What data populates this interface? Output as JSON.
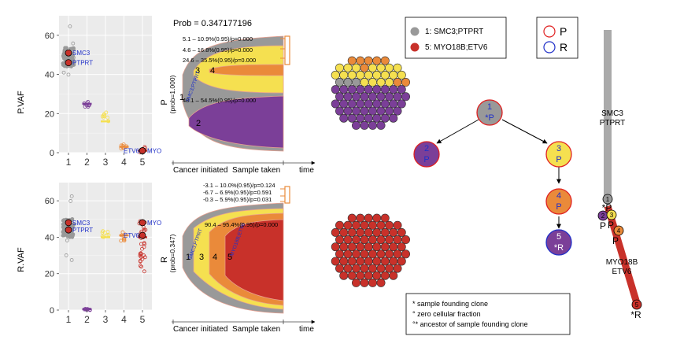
{
  "chart_data": [
    {
      "type": "scatter",
      "panel": "P",
      "ylabel": "P.VAF",
      "xlabel": "",
      "categories": [
        "1",
        "2",
        "3",
        "4",
        "5"
      ],
      "ylim": [
        0,
        70
      ],
      "y_ticks": [
        0,
        20,
        40,
        60
      ],
      "grid": true,
      "clusters": [
        {
          "cluster": 1,
          "median_vaf": 49,
          "range": [
            22,
            65
          ]
        },
        {
          "cluster": 2,
          "median_vaf": 25,
          "range": [
            23,
            26
          ]
        },
        {
          "cluster": 3,
          "median_vaf": 16,
          "range": [
            16,
            21
          ]
        },
        {
          "cluster": 4,
          "median_vaf": 3,
          "range": [
            2,
            5
          ]
        },
        {
          "cluster": 5,
          "median_vaf": 1,
          "range": [
            0,
            4
          ]
        }
      ],
      "highlighted_points": [
        {
          "cluster": 1,
          "vaf": 51,
          "label": "SMC3"
        },
        {
          "cluster": 1,
          "vaf": 46,
          "label": "PTPRT"
        },
        {
          "cluster": 5,
          "vaf": 1,
          "label": "ETV6"
        },
        {
          "cluster": 5,
          "vaf": 1,
          "label": "MYO"
        }
      ]
    },
    {
      "type": "scatter",
      "panel": "R",
      "ylabel": "R.VAF",
      "xlabel": "",
      "categories": [
        "1",
        "2",
        "3",
        "4",
        "5"
      ],
      "ylim": [
        0,
        70
      ],
      "y_ticks": [
        0,
        20,
        40,
        60
      ],
      "grid": true,
      "clusters": [
        {
          "cluster": 1,
          "median_vaf": 45,
          "range": [
            20,
            64
          ]
        },
        {
          "cluster": 2,
          "median_vaf": 0.5,
          "range": [
            0,
            1
          ]
        },
        {
          "cluster": 3,
          "median_vaf": 40,
          "range": [
            40,
            44
          ]
        },
        {
          "cluster": 4,
          "median_vaf": 41,
          "range": [
            38,
            43
          ]
        },
        {
          "cluster": 5,
          "median_vaf": 40,
          "range": [
            20,
            49
          ]
        }
      ],
      "highlighted_points": [
        {
          "cluster": 1,
          "vaf": 48,
          "label": "SMC3"
        },
        {
          "cluster": 1,
          "vaf": 44,
          "label": "PTPRT"
        },
        {
          "cluster": 5,
          "vaf": 41,
          "label": "ETV6"
        },
        {
          "cluster": 5,
          "vaf": 48,
          "label": "MYO"
        }
      ]
    }
  ],
  "fish_p": {
    "title": "Prob = 0.347177196",
    "ylabel": "P",
    "ylabel_sub": "(prob=1.000)",
    "xaxis": [
      "Cancer initiated",
      "Sample taken",
      "time"
    ],
    "annotations": [
      "5.1 – 10.9%(0.95)/p=0.000",
      "4.6 – 16.8%(0.95)/p=0.000",
      "24.6 – 35.5%(0.95)/p=0.000",
      "48.1 – 54.5%(0.95)/p=0.000"
    ],
    "clone_numbers": [
      "1",
      "2",
      "3",
      "4"
    ],
    "founder_gene": "SMC3;PTPRT"
  },
  "fish_r": {
    "ylabel": "R",
    "ylabel_sub": "(prob=0.347)",
    "xaxis": [
      "Cancer initiated",
      "Sample taken",
      "time"
    ],
    "annotations": [
      "-3.1 – 10.0%(0.95)/p=0.124",
      "-6.7 – 6.9%(0.95)/p=0.591",
      "-0.3 – 5.9%(0.95)/p=0.031",
      "90.4 – 95.4%(0.95)/p=0.000"
    ],
    "clone_numbers": [
      "1",
      "3",
      "4",
      "5"
    ],
    "founder_gene": "SMC3;PTPRT",
    "clone5_gene": "MYO18B;ETV6"
  },
  "legend_drivers": [
    {
      "label": "1: SMC3;PTPRT",
      "color": "#999999"
    },
    {
      "label": "5: MYO18B;ETV6",
      "color": "#c8312a"
    }
  ],
  "legend_samples": [
    {
      "label": "P",
      "color": "#e02020"
    },
    {
      "label": "R",
      "color": "#2030c8"
    }
  ],
  "tree_nodes": [
    {
      "id": "1",
      "sample": "*P",
      "color": "#999999"
    },
    {
      "id": "2",
      "sample": "P",
      "color": "#7b3f98"
    },
    {
      "id": "3",
      "sample": "P",
      "color": "#f5e050"
    },
    {
      "id": "4",
      "sample": "P",
      "color": "#ea8a3a"
    },
    {
      "id": "5",
      "sample": "*R",
      "color": "#7b3f98"
    }
  ],
  "branch_tree": {
    "labels": [
      "SMC3",
      "PTPRT",
      "MYO18B",
      "ETV6"
    ],
    "nodes": [
      {
        "id": "1",
        "sample": "*P",
        "color": "#999999"
      },
      {
        "id": "2",
        "sample": "P",
        "color": "#7b3f98"
      },
      {
        "id": "3",
        "sample": "P",
        "color": "#f5e050"
      },
      {
        "id": "4",
        "sample": "P",
        "color": "#ea8a3a"
      },
      {
        "id": "5",
        "sample": "*R",
        "color": "#c8312a"
      }
    ]
  },
  "footnotes": [
    "*  sample founding clone",
    "°  zero cellular fraction",
    "°*  ancestor of sample founding clone"
  ],
  "colors": {
    "grey": "#999999",
    "purple": "#7b3f98",
    "yellow": "#f5e050",
    "orange": "#ea8a3a",
    "red": "#c8312a",
    "light_yellow": "#fbe95a"
  }
}
